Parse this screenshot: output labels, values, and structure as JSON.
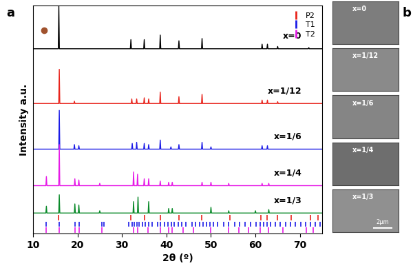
{
  "panel_labels": [
    "a",
    "b"
  ],
  "chart_data": {
    "type": "line",
    "x_label": "2θ (º)",
    "y_label": "Intensity a.u.",
    "xlim": [
      10,
      75
    ],
    "xticks": [
      10,
      20,
      30,
      40,
      50,
      60,
      70
    ],
    "ylim": [
      0,
      100
    ],
    "yticks": [],
    "tick_labels": "x",
    "grid": false,
    "legend": "upper right",
    "marker_point": {
      "x": 12.5,
      "y": 89,
      "color": "#a0522d"
    },
    "series": [
      {
        "name": "x=0",
        "color": "#000000",
        "offset": 81,
        "peaks": [
          [
            15.8,
            19
          ],
          [
            32.0,
            4
          ],
          [
            35.0,
            4
          ],
          [
            38.6,
            6
          ],
          [
            42.8,
            3.5
          ],
          [
            48.0,
            4.5
          ],
          [
            61.5,
            2
          ],
          [
            62.7,
            2
          ],
          [
            65.0,
            1
          ],
          [
            72.0,
            0.5
          ]
        ]
      },
      {
        "name": "x=1/12",
        "color": "#e8231b",
        "offset": 57,
        "peaks": [
          [
            15.9,
            15
          ],
          [
            19.3,
            1
          ],
          [
            32.2,
            2
          ],
          [
            33.3,
            2
          ],
          [
            35.0,
            2.5
          ],
          [
            36.0,
            2
          ],
          [
            38.6,
            5
          ],
          [
            42.8,
            3
          ],
          [
            48.0,
            4
          ],
          [
            61.5,
            1.5
          ],
          [
            62.7,
            1.5
          ],
          [
            65.0,
            0.8
          ]
        ]
      },
      {
        "name": "x=1/6",
        "color": "#1a1ae6",
        "offset": 37,
        "peaks": [
          [
            15.9,
            17
          ],
          [
            19.3,
            2
          ],
          [
            20.3,
            1.5
          ],
          [
            32.3,
            2.5
          ],
          [
            33.3,
            3
          ],
          [
            35.0,
            2.5
          ],
          [
            36.0,
            2
          ],
          [
            38.6,
            4
          ],
          [
            41.0,
            1
          ],
          [
            42.8,
            2
          ],
          [
            48.0,
            3
          ],
          [
            50.0,
            1
          ],
          [
            61.5,
            1.5
          ],
          [
            62.7,
            1.5
          ]
        ]
      },
      {
        "name": "x=1/4",
        "color": "#e61ae6",
        "offset": 21,
        "peaks": [
          [
            13.0,
            4
          ],
          [
            15.9,
            18
          ],
          [
            19.4,
            3
          ],
          [
            20.3,
            2.5
          ],
          [
            25.0,
            1
          ],
          [
            32.6,
            6
          ],
          [
            33.5,
            5
          ],
          [
            35.0,
            3
          ],
          [
            36.0,
            3
          ],
          [
            38.6,
            2
          ],
          [
            40.5,
            1.5
          ],
          [
            41.3,
            1.5
          ],
          [
            48.0,
            1.5
          ],
          [
            50.0,
            1.5
          ],
          [
            54.0,
            1
          ],
          [
            61.5,
            1
          ],
          [
            63.0,
            1
          ]
        ]
      },
      {
        "name": "x=1/3",
        "color": "#0a8a2a",
        "offset": 9,
        "peaks": [
          [
            13.0,
            3
          ],
          [
            15.9,
            8
          ],
          [
            19.4,
            4
          ],
          [
            20.3,
            3.5
          ],
          [
            25.0,
            1
          ],
          [
            32.6,
            5
          ],
          [
            33.6,
            7
          ],
          [
            36.0,
            5
          ],
          [
            40.5,
            2
          ],
          [
            41.3,
            2
          ],
          [
            50.0,
            2.5
          ],
          [
            54.0,
            1
          ],
          [
            60.0,
            1
          ],
          [
            63.0,
            1.5
          ]
        ]
      }
    ],
    "reference": [
      {
        "name": "P2",
        "color": "#e8231b",
        "x": [
          15.8,
          31.9,
          35.0,
          38.6,
          42.8,
          47.9,
          54.3,
          61.3,
          62.6,
          65.0,
          68.0,
          72.3,
          74.0
        ]
      },
      {
        "name": "T1",
        "color": "#1a1ae6",
        "x": [
          13.0,
          15.9,
          19.4,
          20.3,
          25.4,
          26.0,
          31.5,
          32.3,
          32.8,
          33.4,
          33.9,
          34.6,
          35.2,
          36.0,
          36.8,
          38.0,
          38.7,
          39.5,
          40.3,
          41.1,
          41.8,
          42.6,
          43.5,
          44.3,
          45.8,
          46.6,
          47.4,
          48.2,
          49.0,
          49.8,
          50.6,
          51.4,
          52.8,
          54.0,
          55.3,
          56.5,
          57.7,
          58.9,
          60.1,
          61.0,
          61.8,
          62.6,
          63.4,
          64.5,
          65.6,
          66.8,
          67.9,
          69.0,
          70.2,
          71.3,
          72.4,
          73.5,
          74.5
        ]
      },
      {
        "name": "T2",
        "color": "#e61ae6",
        "x": [
          12.9,
          15.9,
          19.4,
          20.3,
          25.4,
          32.6,
          33.6,
          35.9,
          38.6,
          40.5,
          41.3,
          43.7,
          46.1,
          50.0,
          53.9,
          56.2,
          58.5,
          61.0,
          63.0,
          66.2,
          71.5,
          73.0
        ]
      }
    ]
  },
  "sem_panel": {
    "images": [
      "x=0",
      "x=1/12",
      "x=1/6",
      "x=1/4",
      "x=1/3"
    ],
    "scale_bar": "2μm"
  }
}
